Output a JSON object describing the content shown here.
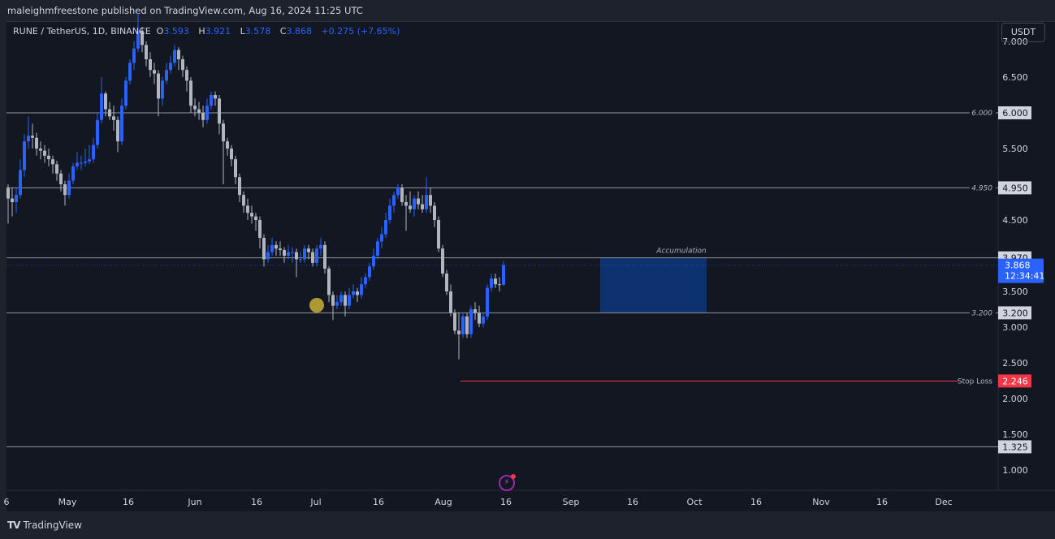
{
  "header": {
    "published": "maleighmfreestone published on TradingView.com, Aug 16, 2024 11:25 UTC"
  },
  "legend": {
    "symbol": "RUNE / TetherUS, 1D, BINANCE",
    "o_label": "O",
    "o": "3.593",
    "h_label": "H",
    "h": "3.921",
    "l_label": "L",
    "l": "3.578",
    "c_label": "C",
    "c": "3.868",
    "change": "+0.275 (+7.65%)"
  },
  "currency_button": "USDT",
  "footer": {
    "brand": "TradingView"
  },
  "colors": {
    "up": "#2962ff",
    "down": "#b2b5be",
    "background": "#131722",
    "stop_loss": "#f23645",
    "last_price": "#2962ff",
    "box": "#0d3b8a",
    "marker": "#c9b037"
  },
  "icons": {
    "alert": "lightning-icon",
    "logo": "tradingview-logo-icon"
  },
  "chart_data": {
    "type": "candlestick",
    "title": "RUNE / TetherUS, 1D, BINANCE",
    "interval": "1D",
    "ylim": [
      0.7,
      7.3
    ],
    "y_ticks": [
      "7.000",
      "6.500",
      "5.500",
      "4.500",
      "3.500",
      "3.000",
      "2.500",
      "2.000",
      "1.500",
      "1.000"
    ],
    "x_ticks": [
      "6",
      "May",
      "16",
      "Jun",
      "16",
      "Jul",
      "16",
      "Aug",
      "16",
      "Sep",
      "16",
      "Oct",
      "16",
      "Nov",
      "16",
      "Dec"
    ],
    "candle_fields": [
      "open",
      "high",
      "low",
      "close"
    ],
    "candles": [
      [
        4.95,
        5.0,
        4.45,
        4.8
      ],
      [
        4.8,
        4.95,
        4.55,
        4.75
      ],
      [
        4.75,
        4.95,
        4.6,
        4.85
      ],
      [
        4.85,
        5.35,
        4.8,
        5.2
      ],
      [
        5.2,
        5.7,
        5.1,
        5.6
      ],
      [
        5.6,
        5.95,
        5.5,
        5.68
      ],
      [
        5.68,
        5.85,
        5.5,
        5.65
      ],
      [
        5.65,
        5.72,
        5.4,
        5.5
      ],
      [
        5.5,
        5.6,
        5.35,
        5.47
      ],
      [
        5.47,
        5.55,
        5.3,
        5.4
      ],
      [
        5.4,
        5.5,
        5.25,
        5.35
      ],
      [
        5.35,
        5.4,
        5.15,
        5.28
      ],
      [
        5.28,
        5.33,
        5.05,
        5.15
      ],
      [
        5.15,
        5.2,
        4.9,
        5.0
      ],
      [
        5.0,
        5.05,
        4.7,
        4.85
      ],
      [
        4.85,
        5.15,
        4.8,
        5.05
      ],
      [
        5.05,
        5.3,
        5.0,
        5.25
      ],
      [
        5.25,
        5.45,
        5.2,
        5.3
      ],
      [
        5.3,
        5.4,
        5.2,
        5.3
      ],
      [
        5.3,
        5.5,
        5.25,
        5.32
      ],
      [
        5.32,
        5.55,
        5.28,
        5.35
      ],
      [
        5.35,
        5.65,
        5.3,
        5.55
      ],
      [
        5.55,
        6.0,
        5.5,
        5.9
      ],
      [
        5.9,
        6.5,
        5.85,
        6.27
      ],
      [
        6.27,
        6.3,
        5.95,
        6.05
      ],
      [
        6.05,
        6.15,
        5.9,
        5.95
      ],
      [
        5.95,
        6.1,
        5.75,
        5.9
      ],
      [
        5.9,
        5.95,
        5.45,
        5.6
      ],
      [
        5.6,
        6.2,
        5.55,
        6.1
      ],
      [
        6.1,
        6.5,
        6.05,
        6.45
      ],
      [
        6.45,
        6.75,
        6.4,
        6.7
      ],
      [
        6.7,
        7.0,
        6.6,
        6.9
      ],
      [
        6.9,
        7.4,
        6.85,
        7.15
      ],
      [
        7.15,
        7.2,
        6.85,
        6.95
      ],
      [
        6.95,
        7.0,
        6.65,
        6.75
      ],
      [
        6.75,
        6.85,
        6.5,
        6.6
      ],
      [
        6.6,
        6.7,
        6.4,
        6.55
      ],
      [
        6.55,
        6.6,
        5.95,
        6.2
      ],
      [
        6.2,
        6.5,
        6.1,
        6.45
      ],
      [
        6.45,
        6.7,
        6.4,
        6.6
      ],
      [
        6.6,
        6.8,
        6.55,
        6.7
      ],
      [
        6.7,
        6.95,
        6.65,
        6.88
      ],
      [
        6.88,
        6.92,
        6.6,
        6.75
      ],
      [
        6.75,
        6.8,
        6.5,
        6.6
      ],
      [
        6.6,
        6.65,
        6.3,
        6.45
      ],
      [
        6.45,
        6.5,
        6.0,
        6.1
      ],
      [
        6.1,
        6.2,
        5.95,
        6.05
      ],
      [
        6.05,
        6.15,
        5.9,
        6.0
      ],
      [
        6.0,
        6.1,
        5.8,
        5.9
      ],
      [
        5.9,
        6.2,
        5.85,
        6.1
      ],
      [
        6.1,
        6.3,
        6.05,
        6.25
      ],
      [
        6.25,
        6.3,
        6.1,
        6.2
      ],
      [
        6.2,
        6.25,
        5.7,
        5.85
      ],
      [
        5.85,
        5.9,
        5.0,
        5.6
      ],
      [
        5.6,
        5.65,
        5.4,
        5.5
      ],
      [
        5.5,
        5.55,
        5.25,
        5.35
      ],
      [
        5.35,
        5.4,
        5.0,
        5.1
      ],
      [
        5.1,
        5.15,
        4.75,
        4.85
      ],
      [
        4.85,
        4.9,
        4.6,
        4.7
      ],
      [
        4.7,
        4.8,
        4.5,
        4.6
      ],
      [
        4.6,
        4.7,
        4.45,
        4.55
      ],
      [
        4.55,
        4.6,
        4.35,
        4.5
      ],
      [
        4.5,
        4.55,
        4.1,
        4.25
      ],
      [
        4.25,
        4.3,
        3.85,
        3.95
      ],
      [
        3.95,
        4.15,
        3.9,
        4.05
      ],
      [
        4.05,
        4.25,
        4.0,
        4.15
      ],
      [
        4.15,
        4.2,
        4.0,
        4.1
      ],
      [
        4.1,
        4.2,
        4.0,
        4.08
      ],
      [
        4.08,
        4.12,
        3.9,
        4.0
      ],
      [
        4.0,
        4.15,
        3.95,
        4.05
      ],
      [
        4.05,
        4.12,
        3.9,
        4.05
      ],
      [
        4.05,
        4.1,
        3.7,
        3.95
      ],
      [
        3.95,
        4.05,
        3.9,
        3.95
      ],
      [
        3.95,
        4.15,
        3.9,
        4.1
      ],
      [
        4.1,
        4.15,
        3.95,
        4.05
      ],
      [
        4.05,
        4.1,
        3.85,
        3.9
      ],
      [
        3.9,
        4.15,
        3.85,
        4.1
      ],
      [
        4.1,
        4.25,
        4.0,
        4.15
      ],
      [
        4.15,
        4.2,
        3.75,
        3.82
      ],
      [
        3.82,
        3.85,
        3.35,
        3.45
      ],
      [
        3.45,
        3.5,
        3.1,
        3.3
      ],
      [
        3.3,
        3.45,
        3.25,
        3.35
      ],
      [
        3.35,
        3.5,
        3.3,
        3.45
      ],
      [
        3.45,
        3.5,
        3.15,
        3.3
      ],
      [
        3.3,
        3.55,
        3.25,
        3.45
      ],
      [
        3.45,
        3.6,
        3.4,
        3.5
      ],
      [
        3.5,
        3.55,
        3.35,
        3.45
      ],
      [
        3.45,
        3.7,
        3.4,
        3.6
      ],
      [
        3.6,
        3.75,
        3.55,
        3.7
      ],
      [
        3.7,
        3.9,
        3.65,
        3.85
      ],
      [
        3.85,
        4.1,
        3.8,
        4.0
      ],
      [
        4.0,
        4.25,
        3.95,
        4.2
      ],
      [
        4.2,
        4.4,
        4.1,
        4.3
      ],
      [
        4.3,
        4.6,
        4.25,
        4.5
      ],
      [
        4.5,
        4.8,
        4.45,
        4.7
      ],
      [
        4.7,
        4.9,
        4.6,
        4.85
      ],
      [
        4.85,
        5.0,
        4.8,
        4.95
      ],
      [
        4.95,
        5.0,
        4.7,
        4.75
      ],
      [
        4.75,
        4.85,
        4.35,
        4.7
      ],
      [
        4.7,
        4.9,
        4.6,
        4.65
      ],
      [
        4.65,
        4.85,
        4.55,
        4.8
      ],
      [
        4.8,
        4.9,
        4.65,
        4.72
      ],
      [
        4.72,
        4.85,
        4.6,
        4.65
      ],
      [
        4.65,
        5.1,
        4.6,
        4.85
      ],
      [
        4.85,
        4.95,
        4.6,
        4.7
      ],
      [
        4.7,
        4.75,
        4.4,
        4.5
      ],
      [
        4.5,
        4.55,
        4.05,
        4.1
      ],
      [
        4.1,
        4.15,
        3.7,
        3.75
      ],
      [
        3.75,
        3.8,
        3.45,
        3.5
      ],
      [
        3.5,
        3.6,
        3.15,
        3.2
      ],
      [
        3.2,
        3.25,
        2.9,
        2.95
      ],
      [
        2.95,
        3.2,
        2.55,
        2.9
      ],
      [
        2.9,
        3.2,
        2.85,
        3.15
      ],
      [
        3.15,
        3.2,
        2.85,
        2.9
      ],
      [
        2.9,
        3.3,
        2.85,
        3.25
      ],
      [
        3.25,
        3.35,
        3.1,
        3.2
      ],
      [
        3.2,
        3.3,
        3.0,
        3.05
      ],
      [
        3.05,
        3.2,
        3.0,
        3.15
      ],
      [
        3.15,
        3.6,
        3.1,
        3.55
      ],
      [
        3.55,
        3.75,
        3.5,
        3.68
      ],
      [
        3.68,
        3.75,
        3.55,
        3.6
      ],
      [
        3.6,
        3.7,
        3.5,
        3.593
      ],
      [
        3.593,
        3.921,
        3.578,
        3.868
      ]
    ],
    "horizontal_levels": [
      {
        "value": 6.0,
        "label": "6.000",
        "axis_label": "6.000"
      },
      {
        "value": 4.95,
        "label": "4.950",
        "axis_label": "4.950"
      },
      {
        "value": 3.97,
        "label": "",
        "axis_label": "3.970"
      },
      {
        "value": 3.2,
        "label": "3.200",
        "axis_label": "3.200"
      },
      {
        "value": 1.325,
        "label": "",
        "axis_label": "1.325"
      }
    ],
    "stop_loss": {
      "value": 2.246,
      "label": "Stop Loss",
      "axis_label": "2.246"
    },
    "last_price": {
      "value": 3.868,
      "label": "3.868",
      "countdown": "12:34:41"
    },
    "accumulation_box": {
      "label": "Accumulation",
      "top": 3.97,
      "bottom": 3.2
    }
  }
}
